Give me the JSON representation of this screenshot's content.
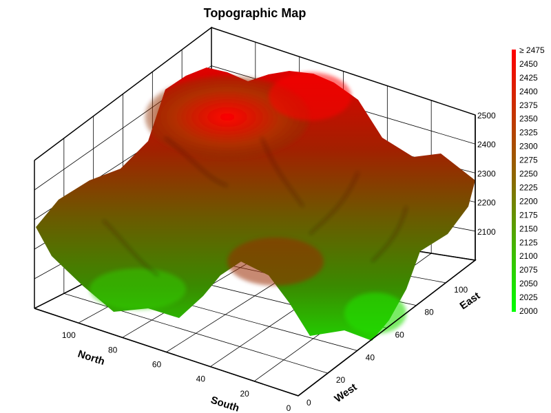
{
  "chart_data": {
    "type": "surface-3d",
    "title": "Topographic Map",
    "axes": {
      "x": {
        "labels": [
          "0",
          "20",
          "40",
          "60",
          "80",
          "100"
        ],
        "range": [
          0,
          120
        ],
        "titles": [
          "South",
          "North"
        ]
      },
      "y": {
        "labels": [
          "0",
          "20",
          "40",
          "60",
          "80",
          "100"
        ],
        "range": [
          0,
          120
        ],
        "titles": [
          "West",
          "East"
        ]
      },
      "z": {
        "labels": [
          "2100",
          "2200",
          "2300",
          "2400",
          "2500"
        ],
        "range": [
          2000,
          2500
        ]
      }
    },
    "color_scale": {
      "min_color": "#00ff00",
      "mid_color": "#996600",
      "max_color": "#ff0000",
      "labels": [
        "≥ 2475",
        "2450",
        "2425",
        "2400",
        "2375",
        "2350",
        "2325",
        "2300",
        "2275",
        "2250",
        "2225",
        "2200",
        "2175",
        "2150",
        "2125",
        "2100",
        "2075",
        "2050",
        "2025",
        "2000"
      ]
    },
    "grid": true,
    "legend": "right"
  }
}
